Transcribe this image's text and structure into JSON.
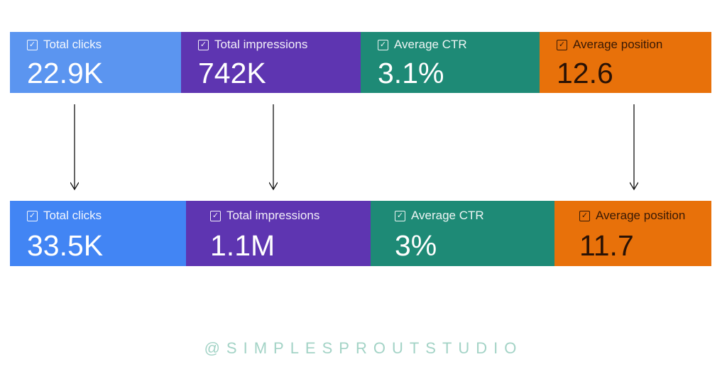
{
  "before": [
    {
      "label": "Total clicks",
      "value": "22.9K",
      "color": "#5b95f0"
    },
    {
      "label": "Total impressions",
      "value": "742K",
      "color": "#5e35b1"
    },
    {
      "label": "Average CTR",
      "value": "3.1%",
      "color": "#1e8a76"
    },
    {
      "label": "Average position",
      "value": "12.6",
      "color": "#e8710a"
    }
  ],
  "after": [
    {
      "label": "Total clicks",
      "value": "33.5K",
      "color": "#4285f4"
    },
    {
      "label": "Total impressions",
      "value": "1.1M",
      "color": "#5e35b1"
    },
    {
      "label": "Average CTR",
      "value": "3%",
      "color": "#1e8a76"
    },
    {
      "label": "Average position",
      "value": "11.7",
      "color": "#e8710a"
    }
  ],
  "watermark": "@SIMPLESPROUTSTUDIO"
}
